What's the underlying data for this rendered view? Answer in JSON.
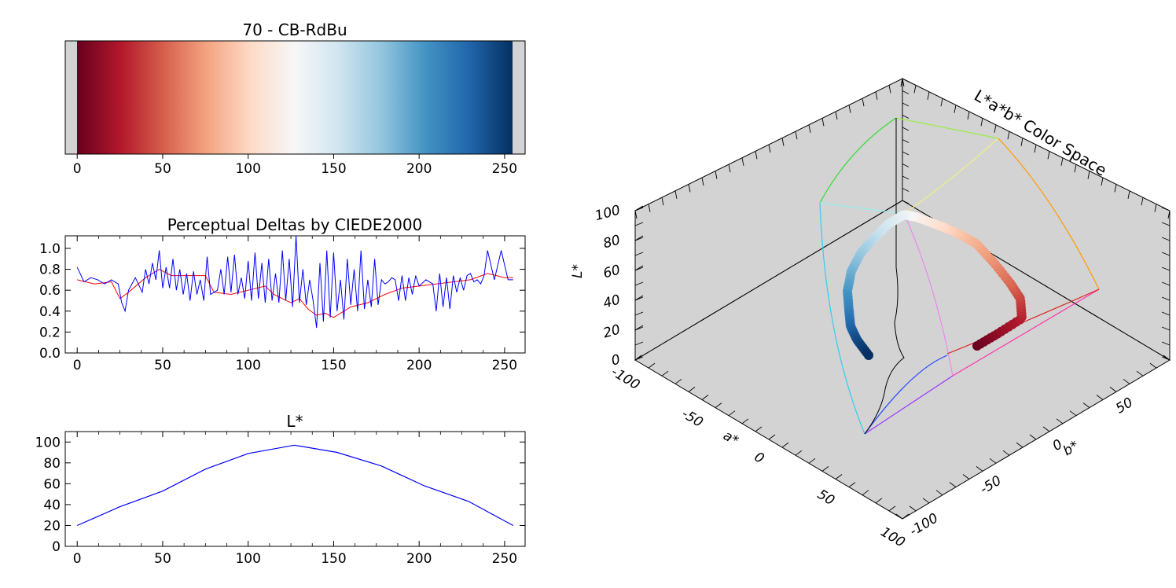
{
  "colorbar": {
    "title": "70 - CB-RdBu",
    "stops": [
      "#67001f",
      "#b2182b",
      "#d6604d",
      "#f4a582",
      "#fddbc7",
      "#f7f7f7",
      "#d1e5f0",
      "#92c5de",
      "#4393c3",
      "#2166ac",
      "#053061"
    ],
    "xlim": [
      -7,
      262
    ],
    "ticks": [
      0,
      50,
      100,
      150,
      200,
      250
    ]
  },
  "deltas": {
    "title": "Perceptual Deltas by CIEDE2000",
    "xlim": [
      -7,
      262
    ],
    "ylim": [
      0,
      1.12
    ],
    "xticks": [
      0,
      50,
      100,
      150,
      200,
      250
    ],
    "yticks": [
      "0.0",
      "0.2",
      "0.4",
      "0.6",
      "0.8",
      "1.0"
    ]
  },
  "lightness": {
    "title": "L*",
    "xlim": [
      -7,
      262
    ],
    "ylim": [
      0,
      110
    ],
    "xticks": [
      0,
      50,
      100,
      150,
      200,
      250
    ],
    "yticks": [
      0,
      20,
      40,
      60,
      80,
      100
    ]
  },
  "lab3d": {
    "title": "L*a*b* Color Space",
    "labels": {
      "L": "L*",
      "a": "a*",
      "b": "b*"
    },
    "L_ticks": [
      "0",
      "20",
      "40",
      "60",
      "80",
      "100"
    ],
    "a_ticks": [
      "-100",
      "-50",
      "0",
      "50",
      "100"
    ],
    "b_ticks": [
      "-100",
      "-50",
      "0",
      "50"
    ]
  },
  "chart_data": [
    {
      "type": "line",
      "title": "Perceptual Deltas by CIEDE2000",
      "xlim": [
        -7,
        262
      ],
      "ylim": [
        0,
        1.12
      ],
      "series": [
        {
          "color": "#0000ff",
          "x": [
            0,
            4,
            8,
            12,
            16,
            20,
            24,
            26,
            28,
            30,
            34,
            38,
            40,
            42,
            44,
            46,
            48,
            50,
            52,
            54,
            56,
            58,
            60,
            62,
            64,
            66,
            68,
            70,
            72,
            74,
            76,
            78,
            80,
            82,
            84,
            86,
            88,
            90,
            92,
            94,
            96,
            98,
            100,
            102,
            104,
            106,
            108,
            110,
            112,
            114,
            116,
            118,
            120,
            122,
            124,
            126,
            128,
            130,
            132,
            134,
            136,
            138,
            140,
            142,
            144,
            146,
            148,
            150,
            152,
            154,
            156,
            158,
            160,
            162,
            164,
            166,
            168,
            170,
            172,
            174,
            176,
            178,
            180,
            182,
            184,
            186,
            188,
            190,
            192,
            194,
            196,
            198,
            200,
            204,
            208,
            210,
            212,
            214,
            216,
            218,
            220,
            222,
            224,
            226,
            228,
            230,
            232,
            234,
            236,
            238,
            240,
            244,
            248,
            252,
            255
          ],
          "y": [
            0.82,
            0.68,
            0.72,
            0.7,
            0.66,
            0.7,
            0.66,
            0.48,
            0.4,
            0.6,
            0.72,
            0.58,
            0.8,
            0.66,
            0.86,
            0.7,
            0.98,
            0.62,
            0.82,
            0.62,
            0.9,
            0.6,
            0.8,
            0.56,
            0.76,
            0.5,
            0.78,
            0.56,
            0.7,
            0.5,
            0.92,
            0.56,
            0.58,
            0.6,
            0.8,
            0.56,
            0.92,
            0.58,
            0.94,
            0.56,
            0.72,
            0.52,
            0.88,
            0.5,
            0.96,
            0.52,
            0.86,
            0.48,
            0.9,
            0.5,
            0.76,
            0.48,
            0.98,
            0.5,
            0.9,
            0.44,
            1.12,
            0.48,
            0.8,
            0.46,
            0.7,
            0.5,
            0.24,
            0.86,
            0.3,
            0.98,
            0.34,
            0.96,
            0.4,
            0.7,
            0.32,
            0.9,
            0.46,
            0.8,
            0.4,
            0.98,
            0.42,
            0.7,
            0.44,
            0.9,
            0.46,
            0.7,
            0.66,
            0.68,
            0.72,
            0.7,
            0.5,
            0.74,
            0.5,
            0.72,
            0.56,
            0.74,
            0.64,
            0.7,
            0.66,
            0.4,
            0.76,
            0.44,
            0.72,
            0.42,
            0.74,
            0.58,
            0.72,
            0.6,
            0.74,
            0.76,
            0.68,
            0.7,
            0.66,
            0.74,
            0.98,
            0.7,
            0.98,
            0.7,
            0.7
          ]
        },
        {
          "color": "#ff0000",
          "x": [
            0,
            10,
            20,
            25,
            30,
            40,
            48,
            55,
            65,
            75,
            80,
            90,
            100,
            110,
            115,
            120,
            125,
            130,
            135,
            140,
            145,
            150,
            160,
            170,
            180,
            190,
            200,
            210,
            220,
            230,
            240,
            250,
            255
          ],
          "y": [
            0.7,
            0.66,
            0.68,
            0.52,
            0.58,
            0.72,
            0.8,
            0.74,
            0.74,
            0.74,
            0.58,
            0.56,
            0.6,
            0.64,
            0.56,
            0.52,
            0.48,
            0.52,
            0.42,
            0.36,
            0.38,
            0.34,
            0.44,
            0.48,
            0.56,
            0.62,
            0.64,
            0.66,
            0.68,
            0.7,
            0.76,
            0.72,
            0.72
          ]
        }
      ]
    },
    {
      "type": "line",
      "title": "L*",
      "xlim": [
        -7,
        262
      ],
      "ylim": [
        0,
        110
      ],
      "series": [
        {
          "color": "#0000ff",
          "x": [
            0,
            25,
            50,
            75,
            100,
            127,
            152,
            178,
            203,
            229,
            255
          ],
          "y": [
            20,
            38,
            53,
            74,
            89,
            97,
            90,
            77,
            58,
            43,
            20
          ]
        }
      ]
    }
  ]
}
